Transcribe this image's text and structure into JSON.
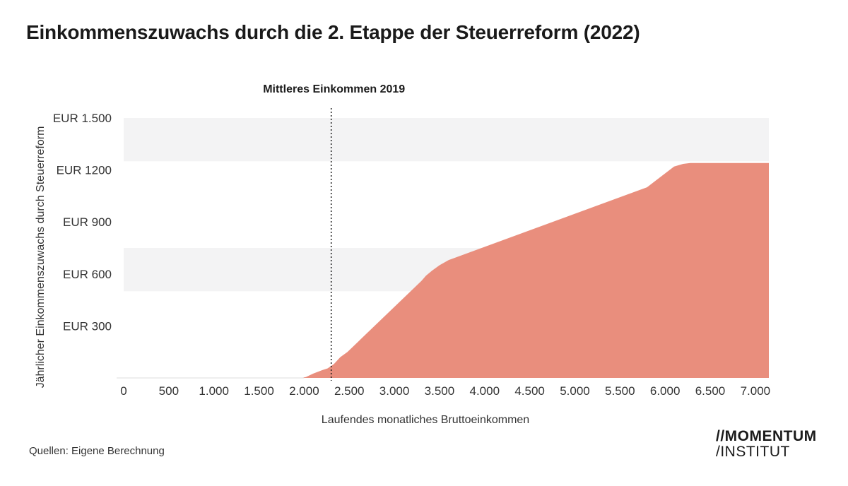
{
  "title": "Einkommenszuwachs durch die 2. Etappe der Steuerreform (2022)",
  "source": "Quellen: Eigene Berechnung",
  "logo": {
    "line1": "MOMENTUM",
    "line2": "INSTITUT",
    "prefix1": "//",
    "prefix2": "/"
  },
  "colors": {
    "area": "#E98E7D",
    "band": "#F3F3F4",
    "text": "#1A1A1A"
  },
  "chart_data": {
    "type": "area",
    "title": "Einkommenszuwachs durch die 2. Etappe der Steuerreform (2022)",
    "xlabel": "Laufendes monatliches Bruttoeinkommen",
    "ylabel": "Jährlicher Einkommenszuwachs durch Steuerreform",
    "xlim": [
      0,
      7150
    ],
    "ylim": [
      0,
      1500
    ],
    "x_ticks": [
      0,
      500,
      1000,
      1500,
      2000,
      2500,
      3000,
      3500,
      4000,
      4500,
      5000,
      5500,
      6000,
      6500,
      7000
    ],
    "x_tick_labels": [
      "0",
      "500",
      "1.000",
      "1.500",
      "2.000",
      "2.500",
      "3.000",
      "3.500",
      "4.000",
      "4.500",
      "5.000",
      "5.500",
      "6.000",
      "6.500",
      "7.000"
    ],
    "y_ticks": [
      300,
      600,
      900,
      1200,
      1500
    ],
    "y_tick_labels": [
      "EUR 300",
      "EUR 600",
      "EUR 900",
      "EUR 1200",
      "EUR 1.500"
    ],
    "marker": {
      "x": 2300,
      "label": "Mittleres Einkommen 2019",
      "style": "dotted"
    },
    "series": [
      {
        "name": "Jährlicher Einkommenszuwachs",
        "x": [
          0,
          1880,
          1960,
          2020,
          2100,
          2200,
          2260,
          2330,
          2400,
          2480,
          3300,
          3350,
          3420,
          3500,
          3600,
          5800,
          6100,
          6200,
          6280,
          7150
        ],
        "y": [
          0,
          0,
          0,
          5,
          25,
          45,
          55,
          80,
          120,
          150,
          560,
          590,
          620,
          650,
          680,
          1100,
          1220,
          1235,
          1240,
          1240
        ]
      }
    ]
  }
}
